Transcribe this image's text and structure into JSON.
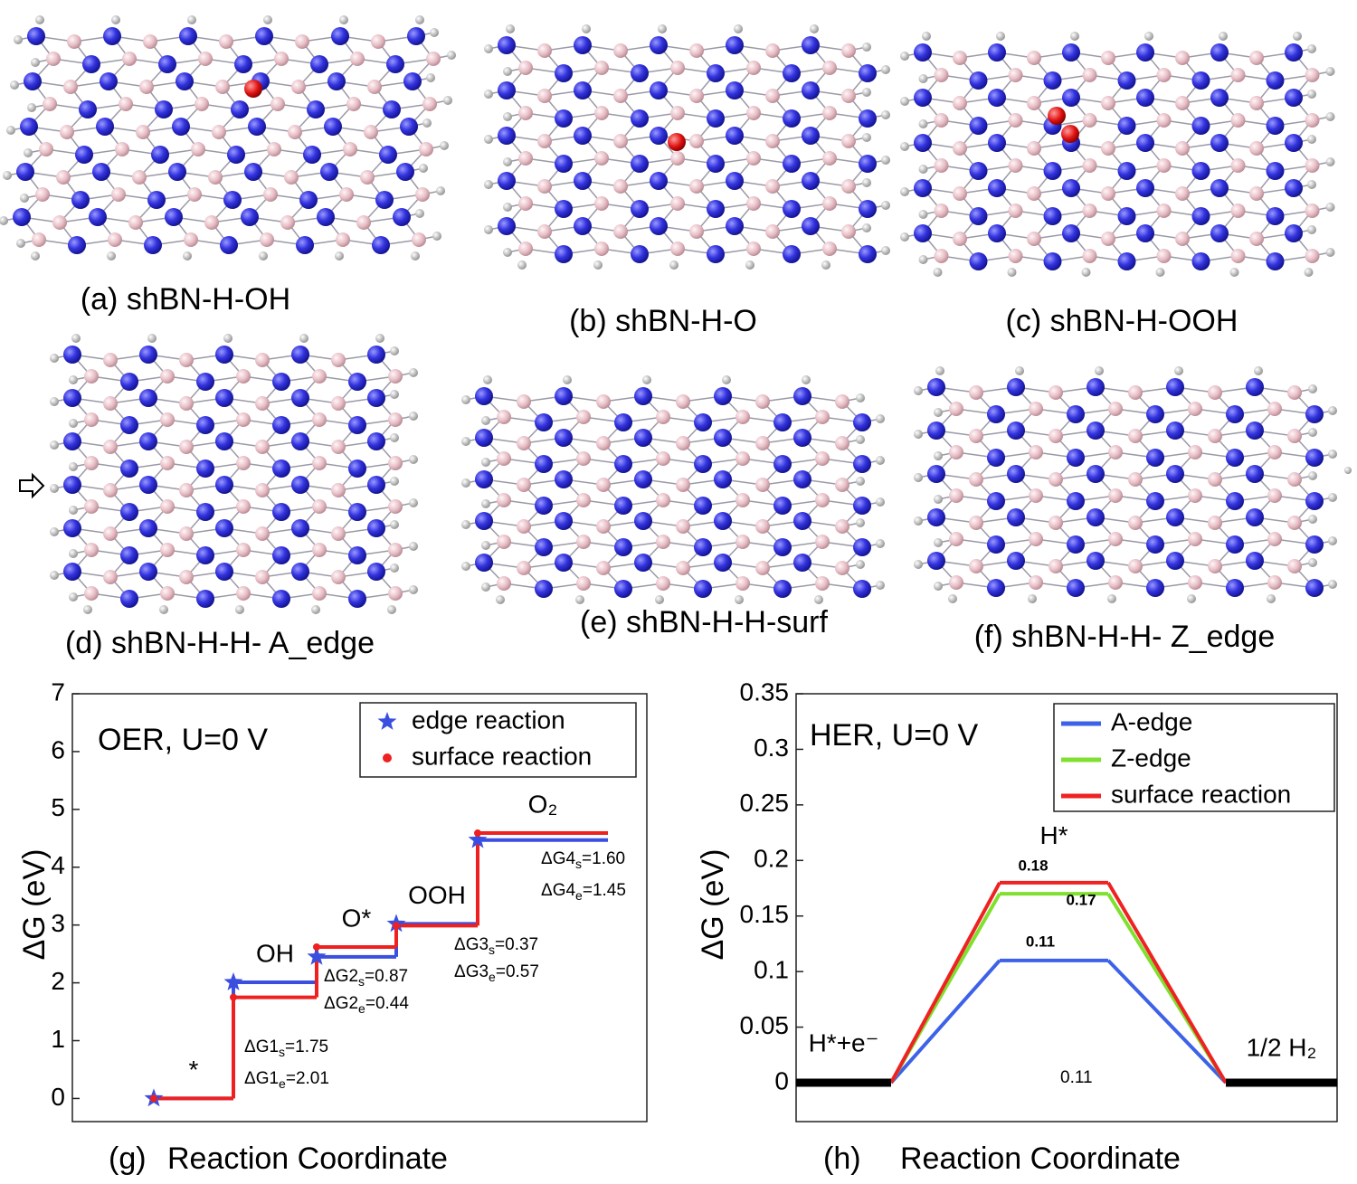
{
  "structures": [
    {
      "label": "(a) shBN-H-OH"
    },
    {
      "label": "(b) shBN-H-O"
    },
    {
      "label": "(c) shBN-H-OOH"
    },
    {
      "label": "(d) shBN-H-H- A_edge"
    },
    {
      "label": "(e) shBN-H-H-surf"
    },
    {
      "label": "(f) shBN-H-H- Z_edge"
    }
  ],
  "chart_data": [
    {
      "type": "step",
      "panel": "(g)",
      "xlabel": "Reaction Coordinate",
      "ylabel": "ΔG (eV)",
      "title": "OER, U=0 V",
      "categories": [
        "*",
        "OH",
        "O*",
        "OOH",
        "O₂"
      ],
      "series": [
        {
          "name": "edge reaction",
          "color": "#3a4fe0",
          "marker": "star",
          "values": [
            0,
            2.01,
            2.45,
            3.02,
            4.47
          ]
        },
        {
          "name": "surface reaction",
          "color": "#ee2020",
          "marker": "dot",
          "values": [
            0,
            1.75,
            2.62,
            2.99,
            4.59
          ]
        }
      ],
      "ylim": [
        -0.4,
        7
      ],
      "yticks": [
        0,
        1,
        2,
        3,
        4,
        5,
        6,
        7
      ],
      "legend": "upper right",
      "annotations": [
        {
          "text": "ΔG1",
          "sub": "s",
          "tail": "=1.75"
        },
        {
          "text": "ΔG1",
          "sub": "e",
          "tail": "=2.01"
        },
        {
          "text": "ΔG2",
          "sub": "s",
          "tail": "=0.87"
        },
        {
          "text": "ΔG2",
          "sub": "e",
          "tail": "=0.44"
        },
        {
          "text": "ΔG3",
          "sub": "s",
          "tail": "=0.37"
        },
        {
          "text": "ΔG3",
          "sub": "e",
          "tail": "=0.57"
        },
        {
          "text": "ΔG4",
          "sub": "s",
          "tail": "=1.60"
        },
        {
          "text": "ΔG4",
          "sub": "e",
          "tail": "=1.45"
        }
      ]
    },
    {
      "type": "level",
      "panel": "(h)",
      "xlabel": "Reaction Coordinate",
      "ylabel": "ΔG (eV)",
      "title": "HER, U=0 V",
      "categories": [
        "H*+e⁻",
        "H*",
        "1/2 H₂"
      ],
      "series": [
        {
          "name": "A-edge",
          "color": "#3d62e8",
          "values": [
            0,
            0.11,
            0
          ]
        },
        {
          "name": "Z-edge",
          "color": "#80e030",
          "values": [
            0,
            0.17,
            0
          ]
        },
        {
          "name": "surface reaction",
          "color": "#ee2222",
          "values": [
            0,
            0.18,
            0
          ]
        }
      ],
      "ylim": [
        -0.035,
        0.35
      ],
      "yticks": [
        0,
        0.05,
        0.1,
        0.15,
        0.2,
        0.25,
        0.3,
        0.35
      ],
      "legend": "upper right",
      "annotations": [
        {
          "text": "0.11"
        }
      ]
    }
  ]
}
